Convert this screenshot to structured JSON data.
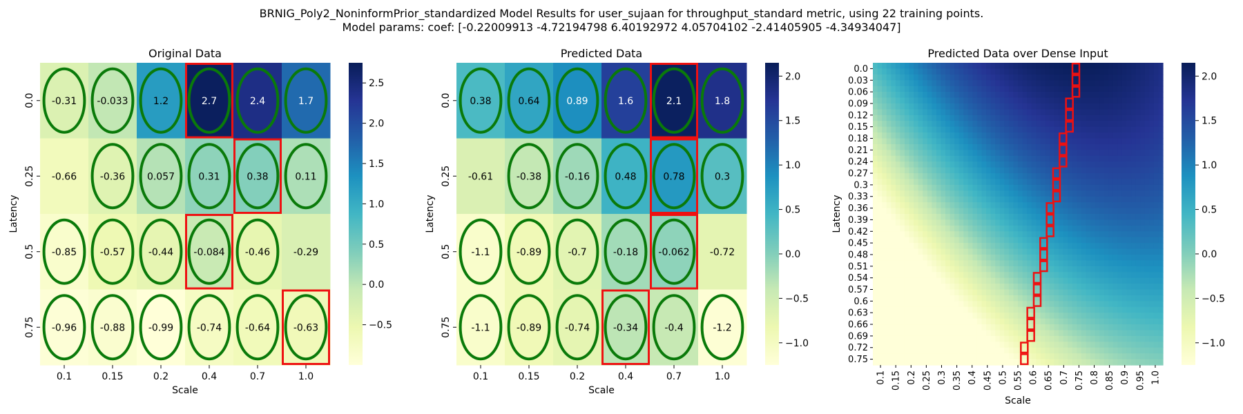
{
  "title_line1": "BRNIG_Poly2_NoninformPrior_standardized Model Results for user_sujaan for throughput_standard metric, using 22 training points.",
  "title_line2": "Model params: coef: [-0.22009913 -4.72194798  6.40192972  4.05704102 -2.41405905 -4.34934047]",
  "colors": {
    "cmap": [
      "#ffffd9",
      "#edf8b1",
      "#c7e9b4",
      "#7fcdbb",
      "#41b6c4",
      "#1d91c0",
      "#225ea8",
      "#253494",
      "#081d58"
    ],
    "ellipse": "#0a7a0a",
    "box": "#ee1111"
  },
  "chart_data": [
    {
      "type": "heatmap",
      "title": "Original Data",
      "xlabel": "Scale",
      "ylabel": "Latency",
      "x": [
        "0.1",
        "0.15",
        "0.2",
        "0.4",
        "0.7",
        "1.0"
      ],
      "y": [
        "0.0",
        "0.25",
        "0.5",
        "0.75"
      ],
      "values": [
        [
          -0.31,
          -0.033,
          1.2,
          2.7,
          2.4,
          1.7
        ],
        [
          -0.66,
          -0.36,
          0.057,
          0.31,
          0.38,
          0.11
        ],
        [
          -0.85,
          -0.57,
          -0.44,
          -0.084,
          -0.46,
          -0.29
        ],
        [
          -0.96,
          -0.88,
          -0.99,
          -0.74,
          -0.64,
          -0.63
        ]
      ],
      "labels": [
        [
          "-0.31",
          "-0.033",
          "1.2",
          "2.7",
          "2.4",
          "1.7"
        ],
        [
          "-0.66",
          "-0.36",
          "0.057",
          "0.31",
          "0.38",
          "0.11"
        ],
        [
          "-0.85",
          "-0.57",
          "-0.44",
          "-0.084",
          "-0.46",
          "-0.29"
        ],
        [
          "-0.96",
          "-0.88",
          "-0.99",
          "-0.74",
          "-0.64",
          "-0.63"
        ]
      ],
      "vmin": -1.0,
      "vmax": 2.75,
      "colorbar_ticks": [
        2.5,
        2.0,
        1.5,
        1.0,
        0.5,
        0.0,
        -0.5
      ],
      "colorbar_labels": [
        "2.5",
        "2.0",
        "1.5",
        "1.0",
        "0.5",
        "0.0",
        "−0.5"
      ],
      "ellipses": [
        [
          0,
          0
        ],
        [
          0,
          1
        ],
        [
          0,
          2
        ],
        [
          0,
          3
        ],
        [
          0,
          4
        ],
        [
          0,
          5
        ],
        [
          1,
          1
        ],
        [
          1,
          2
        ],
        [
          1,
          3
        ],
        [
          1,
          4
        ],
        [
          1,
          5
        ],
        [
          2,
          0
        ],
        [
          2,
          1
        ],
        [
          2,
          2
        ],
        [
          2,
          3
        ],
        [
          2,
          4
        ],
        [
          3,
          0
        ],
        [
          3,
          1
        ],
        [
          3,
          2
        ],
        [
          3,
          3
        ],
        [
          3,
          4
        ],
        [
          3,
          5
        ]
      ],
      "boxes": [
        [
          0,
          3
        ],
        [
          1,
          4
        ],
        [
          2,
          3
        ],
        [
          3,
          5
        ]
      ]
    },
    {
      "type": "heatmap",
      "title": "Predicted Data",
      "xlabel": "Scale",
      "ylabel": "Latency",
      "x": [
        "0.1",
        "0.15",
        "0.2",
        "0.4",
        "0.7",
        "1.0"
      ],
      "y": [
        "0.0",
        "0.25",
        "0.5",
        "0.75"
      ],
      "values": [
        [
          0.38,
          0.64,
          0.89,
          1.6,
          2.1,
          1.8
        ],
        [
          -0.61,
          -0.38,
          -0.16,
          0.48,
          0.78,
          0.3
        ],
        [
          -1.1,
          -0.89,
          -0.7,
          -0.18,
          -0.062,
          -0.72
        ],
        [
          -1.1,
          -0.89,
          -0.74,
          -0.34,
          -0.4,
          -1.2
        ]
      ],
      "labels": [
        [
          "0.38",
          "0.64",
          "0.89",
          "1.6",
          "2.1",
          "1.8"
        ],
        [
          "-0.61",
          "-0.38",
          "-0.16",
          "0.48",
          "0.78",
          "0.3"
        ],
        [
          "-1.1",
          "-0.89",
          "-0.7",
          "-0.18",
          "-0.062",
          "-0.72"
        ],
        [
          "-1.1",
          "-0.89",
          "-0.74",
          "-0.34",
          "-0.4",
          "-1.2"
        ]
      ],
      "vmin": -1.25,
      "vmax": 2.15,
      "colorbar_ticks": [
        2.0,
        1.5,
        1.0,
        0.5,
        0.0,
        -0.5,
        -1.0
      ],
      "colorbar_labels": [
        "2.0",
        "1.5",
        "1.0",
        "0.5",
        "0.0",
        "−0.5",
        "−1.0"
      ],
      "ellipses": [
        [
          0,
          0
        ],
        [
          0,
          1
        ],
        [
          0,
          2
        ],
        [
          0,
          3
        ],
        [
          0,
          4
        ],
        [
          0,
          5
        ],
        [
          1,
          1
        ],
        [
          1,
          2
        ],
        [
          1,
          3
        ],
        [
          1,
          4
        ],
        [
          1,
          5
        ],
        [
          2,
          0
        ],
        [
          2,
          1
        ],
        [
          2,
          2
        ],
        [
          2,
          3
        ],
        [
          2,
          4
        ],
        [
          3,
          0
        ],
        [
          3,
          1
        ],
        [
          3,
          2
        ],
        [
          3,
          3
        ],
        [
          3,
          4
        ],
        [
          3,
          5
        ]
      ],
      "boxes": [
        [
          0,
          4
        ],
        [
          1,
          4
        ],
        [
          2,
          4
        ],
        [
          3,
          3
        ]
      ]
    },
    {
      "type": "heatmap",
      "title": "Predicted Data over Dense Input",
      "xlabel": "Scale",
      "ylabel": "Latency",
      "x": [
        "0.1",
        "0.15",
        "0.2",
        "0.25",
        "0.3",
        "0.35",
        "0.4",
        "0.45",
        "0.5",
        "0.55",
        "0.6",
        "0.65",
        "0.7",
        "0.75",
        "0.8",
        "0.85",
        "0.9",
        "0.95",
        "1.0"
      ],
      "y": [
        "0.0",
        "0.03",
        "0.06",
        "0.09",
        "0.12",
        "0.15",
        "0.18",
        "0.21",
        "0.24",
        "0.27",
        "0.3",
        "0.33",
        "0.36",
        "0.39",
        "0.42",
        "0.45",
        "0.48",
        "0.51",
        "0.54",
        "0.57",
        "0.6",
        "0.63",
        "0.66",
        "0.69",
        "0.72",
        "0.75"
      ],
      "model_coef": [
        -0.22009913,
        -4.72194798,
        6.40192972,
        4.05704102,
        -2.41405905,
        -4.34934047
      ],
      "vmin": -1.25,
      "vmax": 2.15,
      "colorbar_ticks": [
        2.0,
        1.5,
        1.0,
        0.5,
        0.0,
        -0.5,
        -1.0
      ],
      "colorbar_labels": [
        "2.0",
        "1.5",
        "1.0",
        "0.5",
        "0.0",
        "−0.5",
        "−1.0"
      ],
      "optimum_path": [
        {
          "latency": "0.0",
          "scale": 0.73
        },
        {
          "latency": "0.03",
          "scale": 0.73
        },
        {
          "latency": "0.06",
          "scale": 0.73
        },
        {
          "latency": "0.09",
          "scale": 0.71
        },
        {
          "latency": "0.12",
          "scale": 0.71
        },
        {
          "latency": "0.15",
          "scale": 0.71
        },
        {
          "latency": "0.18",
          "scale": 0.69
        },
        {
          "latency": "0.21",
          "scale": 0.69
        },
        {
          "latency": "0.24",
          "scale": 0.69
        },
        {
          "latency": "0.27",
          "scale": 0.67
        },
        {
          "latency": "0.3",
          "scale": 0.67
        },
        {
          "latency": "0.33",
          "scale": 0.67
        },
        {
          "latency": "0.36",
          "scale": 0.65
        },
        {
          "latency": "0.39",
          "scale": 0.65
        },
        {
          "latency": "0.42",
          "scale": 0.65
        },
        {
          "latency": "0.45",
          "scale": 0.63
        },
        {
          "latency": "0.48",
          "scale": 0.63
        },
        {
          "latency": "0.51",
          "scale": 0.63
        },
        {
          "latency": "0.54",
          "scale": 0.61
        },
        {
          "latency": "0.57",
          "scale": 0.61
        },
        {
          "latency": "0.6",
          "scale": 0.61
        },
        {
          "latency": "0.63",
          "scale": 0.59
        },
        {
          "latency": "0.66",
          "scale": 0.59
        },
        {
          "latency": "0.69",
          "scale": 0.59
        },
        {
          "latency": "0.72",
          "scale": 0.57
        },
        {
          "latency": "0.75",
          "scale": 0.57
        }
      ]
    }
  ]
}
